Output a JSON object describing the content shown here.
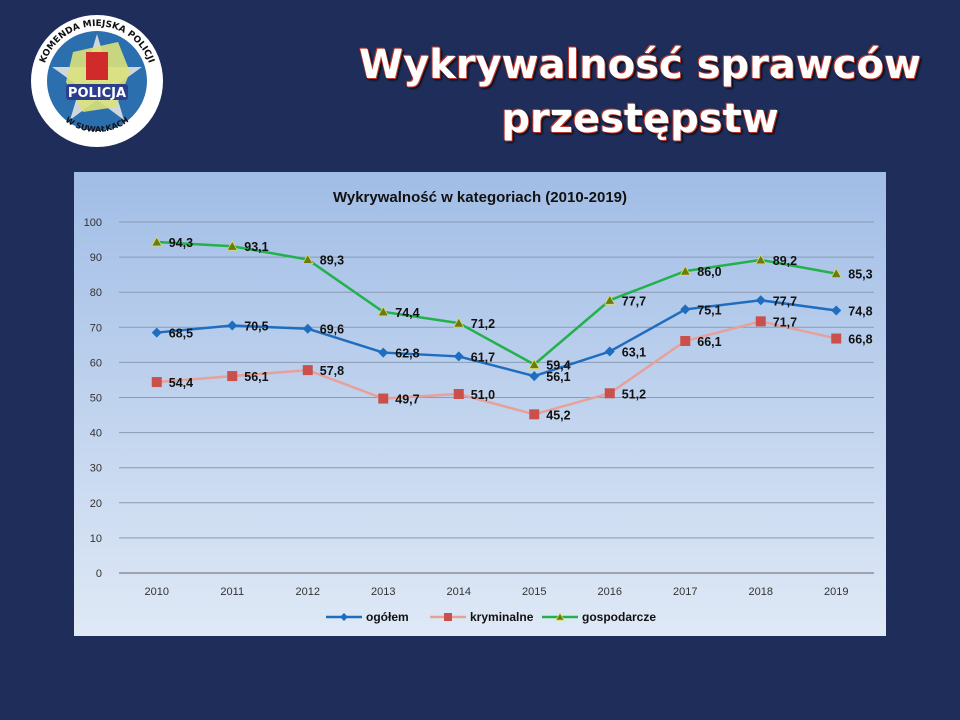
{
  "slide": {
    "title_line1": "Wykrywalność sprawców",
    "title_line2": "przestępstw",
    "logo_text_top": "KOMENDA MIEJSKA POLICJI",
    "logo_text_center": "POLICJA",
    "logo_text_bottom": "W SUWAŁKACH"
  },
  "chart_data": {
    "type": "line",
    "title": "Wykrywalność w kategoriach (2010-2019)",
    "xlabel": "",
    "ylabel": "",
    "ylim": [
      0,
      100
    ],
    "yticks": [
      0,
      10,
      20,
      30,
      40,
      50,
      60,
      70,
      80,
      90,
      100
    ],
    "grid": true,
    "legend": "bottom",
    "categories": [
      "2010",
      "2011",
      "2012",
      "2013",
      "2014",
      "2015",
      "2016",
      "2017",
      "2018",
      "2019"
    ],
    "series": [
      {
        "name": "ogółem",
        "color": "#1f6dbf",
        "marker": "diamond",
        "values": [
          68.5,
          70.5,
          69.6,
          62.8,
          61.7,
          56.1,
          63.1,
          75.1,
          77.7,
          74.8
        ],
        "labels": [
          "68,5",
          "70,5",
          "69,6",
          "62,8",
          "61,7",
          "56,1",
          "63,1",
          "75,1",
          "77,7",
          "74,8"
        ]
      },
      {
        "name": "kryminalne",
        "color": "#e8a09a",
        "marker_color": "#c9504b",
        "marker": "square",
        "values": [
          54.4,
          56.1,
          57.8,
          49.7,
          51.0,
          45.2,
          51.2,
          66.1,
          71.7,
          66.8
        ],
        "labels": [
          "54,4",
          "56,1",
          "57,8",
          "49,7",
          "51,0",
          "45,2",
          "51,2",
          "66,1",
          "71,7",
          "66,8"
        ]
      },
      {
        "name": "gospodarcze",
        "color": "#22b14c",
        "marker_color": "#6b7a12",
        "marker": "triangle",
        "values": [
          94.3,
          93.1,
          89.3,
          74.4,
          71.2,
          59.4,
          77.7,
          86.0,
          89.2,
          85.3
        ],
        "labels": [
          "94,3",
          "93,1",
          "89,3",
          "74,4",
          "71,2",
          "59,4",
          "77,7",
          "86,0",
          "89,2",
          "85,3"
        ]
      }
    ]
  }
}
